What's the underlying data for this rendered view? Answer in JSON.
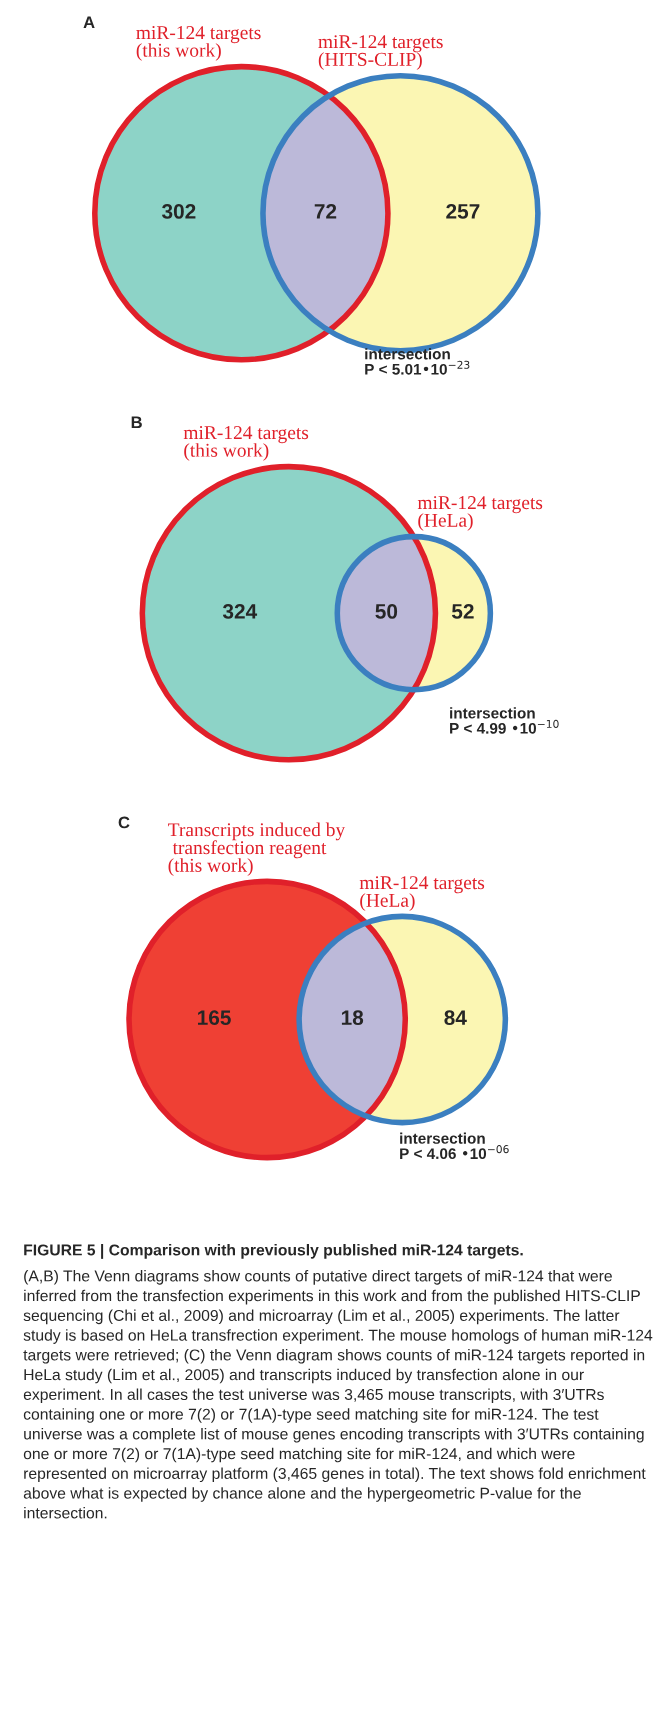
{
  "chart_data": [
    {
      "type": "other",
      "title": "A",
      "categories": [
        "miR-124 targets\n(this work)",
        null,
        "miR-124 targets\n(HITS-CLIP)"
      ],
      "values": [
        302,
        72,
        257
      ],
      "data_labels": true,
      "colors": [
        "#8dd3c7",
        "#bcb9d9",
        "#fbf6b3"
      ],
      "annotations": [
        "intersection\nP < 5.01•10$^{−23}$"
      ]
    },
    {
      "type": "other",
      "title": "B",
      "categories": [
        "miR-124 targets\n(this work)",
        null,
        "miR-124 targets\n(HeLa)"
      ],
      "values": [
        324,
        50,
        52
      ],
      "data_labels": true,
      "colors": [
        "#8dd3c7",
        "#bcb9d9",
        "#fbf6b3"
      ],
      "annotations": [
        "intersection\nP < 4.99 •10$^{−10}$"
      ]
    },
    {
      "type": "other",
      "title": "C",
      "categories": [
        "Transcripts induced by\n transfection reagent\n(this work)",
        null,
        "miR-124 targets\n(HeLa)"
      ],
      "values": [
        165,
        18,
        84
      ],
      "data_labels": true,
      "colors": [
        "#ef4034",
        "#bcb9d9",
        "#fbf6b3"
      ],
      "annotations": [
        "intersection\nP < 4.06 •10$^{−06}$",
        "FIGURE 5 | Comparison with previously published miR-124 targets.",
        "(A,B) The Venn diagrams show counts of putative direct targets of miR-124 that were inferred from the transfection experiments in this work and from the published HITS-CLIP sequencing (Chi et al., 2009) and microarray (Lim et al., 2005) experiments. The latter study is based on HeLa transfrection experiment. The mouse homologs of human miR-124 targets were retrieved; (C) the Venn diagram shows counts of miR-124 targets reported in HeLa study (Lim et al., 2005) and transcripts induced by transfection alone in our experiment. In all cases the test universe was 3,465 mouse transcripts, with 3′UTRs containing one or more 7(2) or 7(1A)-type seed matching site for miR-124. The test universe was a complete list of mouse genes encoding transcripts with 3′UTRs containing one or more 7(2) or 7(1A)-type seed matching site for miR-124, and which were represented on microarray platform (3,465 genes in total). The text shows fold enrichment above what is expected by chance alone and the hypergeometric P-value for the intersection."
      ]
    }
  ]
}
